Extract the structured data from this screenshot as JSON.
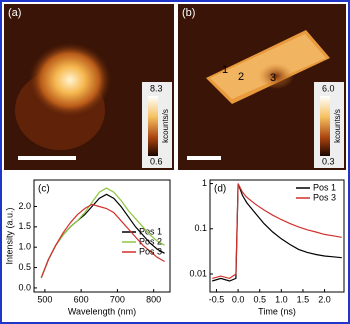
{
  "panels": [
    {
      "label": "(a)",
      "colorbar_max": "8.3",
      "colorbar_unit": "kcounts/s",
      "colorbar_min": "0.6"
    },
    {
      "label": "(b)",
      "colorbar_max": "6.0",
      "colorbar_unit": "kcounts/s",
      "colorbar_min": "0.3",
      "markers": [
        "1",
        "2",
        "3"
      ]
    }
  ],
  "chart_data": [
    {
      "type": "line",
      "label": "(c)",
      "xlabel": "Wavelength (nm)",
      "ylabel": "Intensity (a.u.)",
      "x": [
        490,
        510,
        530,
        550,
        570,
        590,
        610,
        630,
        650,
        670,
        690,
        710,
        730,
        750,
        770,
        790,
        810,
        830
      ],
      "xlim": [
        470,
        845
      ],
      "xticks": [
        500,
        600,
        700,
        800
      ],
      "ylim": [
        -0.1,
        2.65
      ],
      "yticks": [
        {
          "value": 0,
          "label": "0.0"
        },
        0.5,
        {
          "value": 1,
          "label": "1.0"
        },
        1.5,
        {
          "value": 2,
          "label": "2.0"
        }
      ],
      "log_y": false,
      "legend": "right",
      "series": [
        {
          "name": "Pos 1",
          "color": "#000000",
          "values": [
            0.25,
            0.7,
            1.05,
            1.3,
            1.5,
            1.65,
            1.8,
            2.0,
            2.2,
            2.3,
            2.2,
            2.0,
            1.75,
            1.5,
            1.3,
            1.1,
            0.95,
            0.85
          ]
        },
        {
          "name": "Pos 2",
          "color": "#8cc63f",
          "values": [
            0.25,
            0.7,
            1.05,
            1.3,
            1.5,
            1.65,
            1.85,
            2.1,
            2.35,
            2.45,
            2.35,
            2.15,
            1.9,
            1.7,
            1.5,
            1.3,
            1.15,
            1.05
          ]
        },
        {
          "name": "Pos 3",
          "color": "#d0312d",
          "values": [
            0.25,
            0.7,
            1.05,
            1.35,
            1.6,
            1.8,
            1.95,
            2.05,
            2.0,
            1.95,
            1.85,
            1.65,
            1.45,
            1.25,
            1.05,
            0.9,
            0.75,
            0.65
          ]
        }
      ]
    },
    {
      "type": "line",
      "label": "(d)",
      "xlabel": "Time (ns)",
      "x": [
        -0.6,
        -0.4,
        -0.2,
        -0.05,
        0,
        0.1,
        0.2,
        0.4,
        0.6,
        0.8,
        1.0,
        1.2,
        1.4,
        1.6,
        1.8,
        2.0,
        2.2,
        2.4
      ],
      "xlim": [
        -0.65,
        2.45
      ],
      "xticks": [
        -0.5,
        {
          "value": 0,
          "label": "0.0"
        },
        0.5,
        {
          "value": 1,
          "label": "1.0"
        },
        1.5,
        {
          "value": 2,
          "label": "2.0"
        }
      ],
      "ylim": [
        0.004,
        1.2
      ],
      "yticks": [
        0.01,
        0.1,
        1
      ],
      "log_y": true,
      "legend": "upper right",
      "series": [
        {
          "name": "Pos 1",
          "color": "#000000",
          "values": [
            0.007,
            0.008,
            0.007,
            0.008,
            1,
            0.55,
            0.38,
            0.22,
            0.13,
            0.085,
            0.06,
            0.045,
            0.035,
            0.03,
            0.027,
            0.025,
            0.024,
            0.023
          ]
        },
        {
          "name": "Pos 3",
          "color": "#d0312d",
          "values": [
            0.008,
            0.009,
            0.008,
            0.01,
            1,
            0.65,
            0.5,
            0.35,
            0.26,
            0.2,
            0.16,
            0.13,
            0.11,
            0.095,
            0.085,
            0.075,
            0.07,
            0.065
          ]
        }
      ]
    }
  ]
}
